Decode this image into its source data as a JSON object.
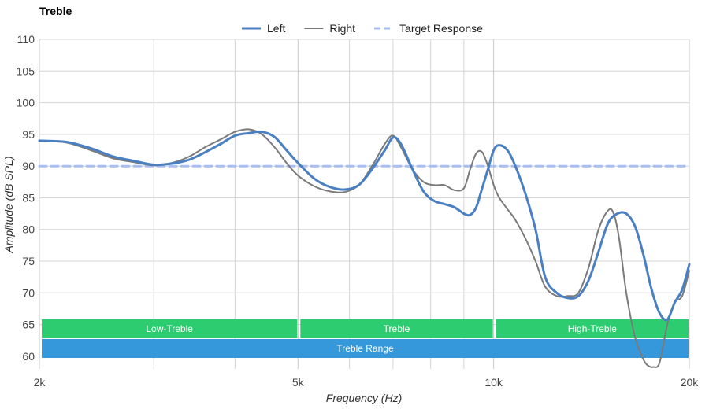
{
  "chart_data": {
    "type": "line",
    "title": "Treble",
    "xlabel": "Frequency (Hz)",
    "ylabel": "Amplitude (dB SPL)",
    "x_scale": "log",
    "xlim": [
      2000,
      20000
    ],
    "ylim": [
      58,
      110
    ],
    "x_ticks": [
      {
        "value": 2000,
        "label": "2k"
      },
      {
        "value": 5000,
        "label": "5k"
      },
      {
        "value": 10000,
        "label": "10k"
      },
      {
        "value": 20000,
        "label": "20k"
      }
    ],
    "x_minor_gridlines": [
      3000,
      4000,
      6000,
      7000,
      8000,
      9000
    ],
    "y_ticks": [
      60,
      65,
      70,
      75,
      80,
      85,
      90,
      95,
      100,
      105,
      110
    ],
    "grid": true,
    "legend_position": "top-center",
    "series": [
      {
        "name": "Left",
        "color": "#4a7fc1",
        "style": "solid-thick",
        "x": [
          2000,
          2200,
          2400,
          2600,
          2800,
          3000,
          3200,
          3400,
          3600,
          3800,
          4000,
          4200,
          4400,
          4600,
          4800,
          5000,
          5300,
          5600,
          5900,
          6200,
          6500,
          6800,
          7000,
          7200,
          7500,
          7800,
          8100,
          8400,
          8700,
          9000,
          9200,
          9400,
          9600,
          9800,
          10000,
          10200,
          10500,
          10800,
          11200,
          11600,
          12000,
          12500,
          13000,
          13500,
          14000,
          14500,
          15000,
          15500,
          16000,
          16500,
          17000,
          17500,
          18000,
          18500,
          19000,
          19500,
          20000
        ],
        "values": [
          94,
          93.8,
          92.8,
          91.5,
          90.8,
          90.2,
          90.4,
          91.0,
          92.2,
          93.5,
          94.8,
          95.2,
          95.4,
          94.6,
          92.5,
          90.5,
          88.0,
          86.7,
          86.3,
          87.0,
          89.5,
          92.5,
          94.5,
          93.5,
          89.5,
          86.0,
          84.5,
          84.0,
          83.5,
          82.5,
          82.3,
          83.5,
          86.5,
          89.5,
          92.5,
          93.3,
          92.5,
          90.0,
          85.5,
          80.0,
          72.5,
          70.0,
          69.2,
          69.5,
          72.0,
          76.5,
          81.0,
          82.5,
          82.5,
          80.5,
          76.0,
          70.5,
          66.8,
          65.8,
          68.5,
          70.5,
          74.5
        ]
      },
      {
        "name": "Right",
        "color": "#7a7a7a",
        "style": "solid-thin",
        "x": [
          2000,
          2200,
          2400,
          2600,
          2800,
          3000,
          3200,
          3400,
          3600,
          3800,
          4000,
          4200,
          4400,
          4600,
          4800,
          5000,
          5300,
          5600,
          5900,
          6200,
          6500,
          6800,
          7000,
          7200,
          7500,
          7800,
          8100,
          8400,
          8700,
          9000,
          9200,
          9400,
          9600,
          9800,
          10000,
          10200,
          10500,
          10800,
          11200,
          11600,
          12000,
          12500,
          13000,
          13500,
          14000,
          14500,
          15000,
          15300,
          15600,
          16000,
          16500,
          17000,
          17300,
          17600,
          18000,
          18500,
          19000,
          19500,
          20000
        ],
        "values": [
          94,
          93.7,
          92.5,
          91.2,
          90.6,
          90.1,
          90.5,
          91.5,
          93.0,
          94.2,
          95.4,
          95.8,
          95.0,
          93.0,
          90.5,
          88.5,
          86.8,
          86.0,
          85.9,
          87.0,
          90.0,
          93.5,
          94.8,
          93.0,
          89.5,
          87.5,
          87.0,
          87.0,
          86.2,
          86.5,
          89.5,
          92.0,
          92.2,
          90.0,
          87.0,
          85.0,
          83.2,
          81.5,
          78.5,
          75.0,
          71.0,
          69.5,
          69.5,
          70.0,
          74.0,
          80.0,
          83.0,
          82.5,
          78.5,
          70.0,
          63.0,
          59.5,
          58.5,
          58.3,
          59.0,
          65.0,
          68.5,
          69.5,
          73.5
        ]
      },
      {
        "name": "Target Response",
        "color": "#a9bdf0",
        "style": "dashed",
        "x": [
          2000,
          20000
        ],
        "values": [
          90,
          90
        ]
      }
    ],
    "bands": [
      {
        "label": "Low-Treble",
        "from": 2000,
        "to": 5000,
        "color": "#2ecc71",
        "row": 1
      },
      {
        "label": "Treble",
        "from": 5000,
        "to": 10000,
        "color": "#2ecc71",
        "row": 1
      },
      {
        "label": "High-Treble",
        "from": 10000,
        "to": 20000,
        "color": "#2ecc71",
        "row": 1
      },
      {
        "label": "Treble Range",
        "from": 2000,
        "to": 20000,
        "color": "#3498db",
        "row": 2
      }
    ]
  }
}
